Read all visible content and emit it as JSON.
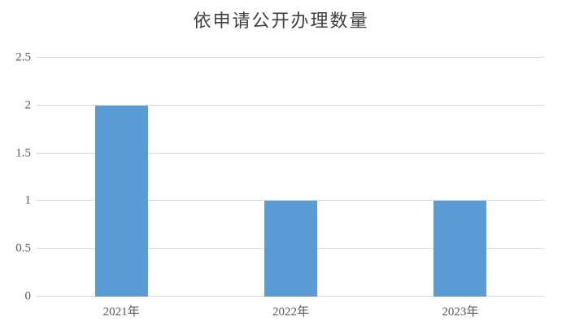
{
  "chart_data": {
    "type": "bar",
    "title": "依申请公开办理数量",
    "categories": [
      "2021年",
      "2022年",
      "2023年"
    ],
    "values": [
      2,
      1,
      1
    ],
    "xlabel": "",
    "ylabel": "",
    "ylim": [
      0,
      2.5
    ],
    "yticks": [
      "0",
      "0.5",
      "1",
      "1.5",
      "2",
      "2.5"
    ],
    "grid": true,
    "legend_position": "none",
    "colors": {
      "bar": "#5B9BD5",
      "gridline": "#D9D9D9",
      "axis_labels": "#595959",
      "title": "#404040",
      "background": "#FFFFFF"
    }
  }
}
